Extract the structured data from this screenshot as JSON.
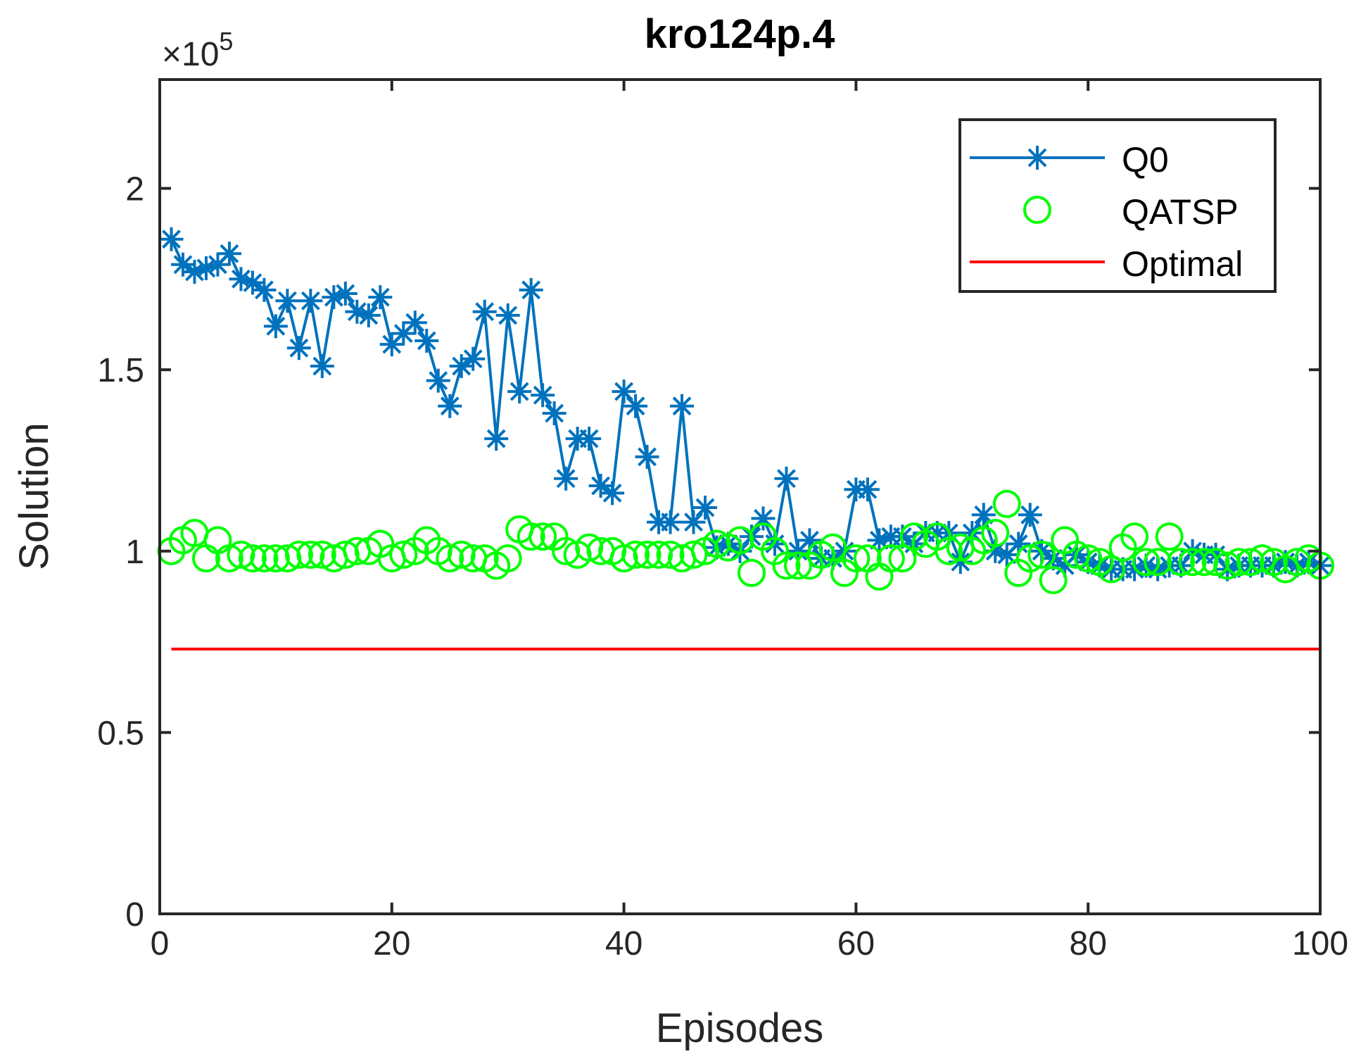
{
  "chart_data": {
    "type": "line",
    "title": "kro124p.4",
    "xlabel": "Episodes",
    "ylabel": "Solution",
    "y_exponent_label": "×10",
    "y_exponent_power": "5",
    "xlim": [
      0,
      100
    ],
    "ylim": [
      0,
      2.3
    ],
    "y_scale": 100000,
    "x_ticks": [
      0,
      20,
      40,
      60,
      80,
      100
    ],
    "x_tick_labels": [
      "0",
      "20",
      "40",
      "60",
      "80",
      "100"
    ],
    "y_ticks": [
      0,
      0.5,
      1,
      1.5,
      2
    ],
    "y_tick_labels": [
      "0",
      "0.5",
      "1",
      "1.5",
      "2"
    ],
    "grid": false,
    "legend_position": "top-right",
    "series": [
      {
        "name": "Q0",
        "color": "#0072BD",
        "marker": "asterisk",
        "line": "solid",
        "x": [
          1,
          2,
          3,
          4,
          5,
          6,
          7,
          8,
          9,
          10,
          11,
          12,
          13,
          14,
          15,
          16,
          17,
          18,
          19,
          20,
          21,
          22,
          23,
          24,
          25,
          26,
          27,
          28,
          29,
          30,
          31,
          32,
          33,
          34,
          35,
          36,
          37,
          38,
          39,
          40,
          41,
          42,
          43,
          44,
          45,
          46,
          47,
          48,
          49,
          50,
          51,
          52,
          53,
          54,
          55,
          56,
          57,
          58,
          59,
          60,
          61,
          62,
          63,
          64,
          65,
          66,
          67,
          68,
          69,
          70,
          71,
          72,
          73,
          74,
          75,
          76,
          77,
          78,
          79,
          80,
          81,
          82,
          83,
          84,
          85,
          86,
          87,
          88,
          89,
          90,
          91,
          92,
          93,
          94,
          95,
          96,
          97,
          98,
          99,
          100
        ],
        "values": [
          1.86,
          1.79,
          1.77,
          1.78,
          1.79,
          1.82,
          1.75,
          1.74,
          1.72,
          1.62,
          1.69,
          1.56,
          1.69,
          1.51,
          1.7,
          1.71,
          1.66,
          1.65,
          1.7,
          1.57,
          1.6,
          1.63,
          1.58,
          1.47,
          1.4,
          1.51,
          1.53,
          1.66,
          1.31,
          1.65,
          1.44,
          1.72,
          1.43,
          1.38,
          1.2,
          1.31,
          1.31,
          1.18,
          1.16,
          1.44,
          1.4,
          1.26,
          1.08,
          1.08,
          1.4,
          1.08,
          1.12,
          1.01,
          1.02,
          1.0,
          1.04,
          1.09,
          1.02,
          1.2,
          1.0,
          1.03,
          0.98,
          0.98,
          1.0,
          1.17,
          1.17,
          1.03,
          1.04,
          1.04,
          1.02,
          1.05,
          1.05,
          1.05,
          0.97,
          1.05,
          1.1,
          1.0,
          0.99,
          1.02,
          1.1,
          1.0,
          0.98,
          0.96,
          0.99,
          0.97,
          0.96,
          0.95,
          0.95,
          0.95,
          0.96,
          0.95,
          0.96,
          0.96,
          1.0,
          0.99,
          0.99,
          0.95,
          0.96,
          0.96,
          0.96,
          0.96,
          0.97,
          0.96,
          0.97,
          0.96
        ]
      },
      {
        "name": "QATSP",
        "color": "#00FF00",
        "marker": "circle",
        "line": "none",
        "x": [
          1,
          2,
          3,
          4,
          5,
          6,
          7,
          8,
          9,
          10,
          11,
          12,
          13,
          14,
          15,
          16,
          17,
          18,
          19,
          20,
          21,
          22,
          23,
          24,
          25,
          26,
          27,
          28,
          29,
          30,
          31,
          32,
          33,
          34,
          35,
          36,
          37,
          38,
          39,
          40,
          41,
          42,
          43,
          44,
          45,
          46,
          47,
          48,
          49,
          50,
          51,
          52,
          53,
          54,
          55,
          56,
          57,
          58,
          59,
          60,
          61,
          62,
          63,
          64,
          65,
          66,
          67,
          68,
          69,
          70,
          71,
          72,
          73,
          74,
          75,
          76,
          77,
          78,
          79,
          80,
          81,
          82,
          83,
          84,
          85,
          86,
          87,
          88,
          89,
          90,
          91,
          92,
          93,
          94,
          95,
          96,
          97,
          98,
          99,
          100
        ],
        "values": [
          1.0,
          1.03,
          1.05,
          0.98,
          1.03,
          0.98,
          0.99,
          0.98,
          0.98,
          0.98,
          0.98,
          0.99,
          0.99,
          0.99,
          0.98,
          0.99,
          1.0,
          1.0,
          1.02,
          0.98,
          0.99,
          1.0,
          1.03,
          1.0,
          0.98,
          0.99,
          0.98,
          0.98,
          0.96,
          0.98,
          1.06,
          1.04,
          1.04,
          1.04,
          1.0,
          0.99,
          1.01,
          1.0,
          1.0,
          0.98,
          0.99,
          0.99,
          0.99,
          0.99,
          0.98,
          0.99,
          1.0,
          1.02,
          1.01,
          1.03,
          0.94,
          1.04,
          1.0,
          0.96,
          0.96,
          0.96,
          0.99,
          1.01,
          0.94,
          0.98,
          0.98,
          0.93,
          0.98,
          0.98,
          1.04,
          1.02,
          1.04,
          1.0,
          1.01,
          1.0,
          1.03,
          1.05,
          1.13,
          0.94,
          0.98,
          0.99,
          0.92,
          1.03,
          0.99,
          0.98,
          0.97,
          0.95,
          1.01,
          1.04,
          0.97,
          0.97,
          1.04,
          0.97,
          0.97,
          0.97,
          0.97,
          0.96,
          0.97,
          0.97,
          0.98,
          0.97,
          0.95,
          0.97,
          0.98,
          0.96
        ]
      },
      {
        "name": "Optimal",
        "color": "#FF0000",
        "marker": "none",
        "line": "solid",
        "x": [
          1,
          100
        ],
        "values": [
          0.73,
          0.73
        ]
      }
    ]
  }
}
